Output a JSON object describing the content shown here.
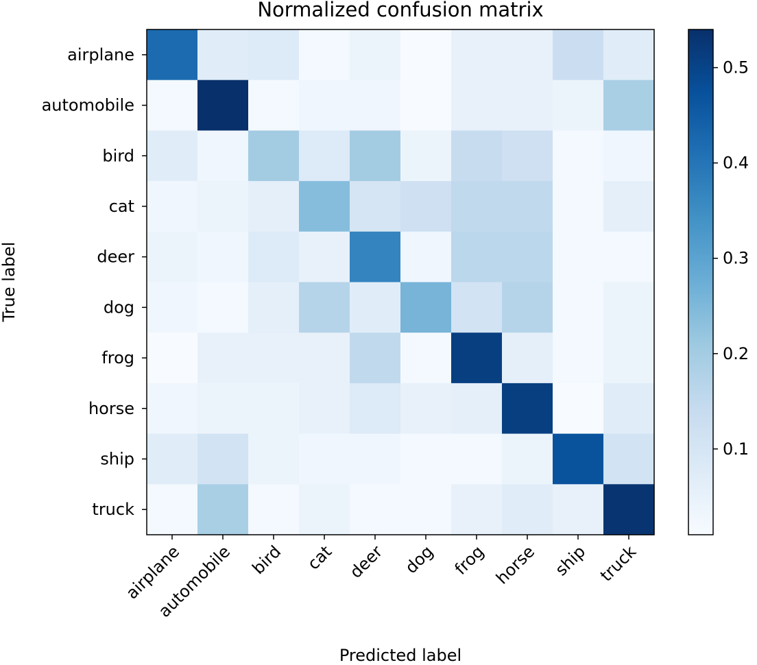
{
  "chart_data": {
    "type": "heatmap",
    "title": "Normalized confusion matrix",
    "xlabel": "Predicted label",
    "ylabel": "True label",
    "x_categories": [
      "airplane",
      "automobile",
      "bird",
      "cat",
      "deer",
      "dog",
      "frog",
      "horse",
      "ship",
      "truck"
    ],
    "y_categories": [
      "airplane",
      "automobile",
      "bird",
      "cat",
      "deer",
      "dog",
      "frog",
      "horse",
      "ship",
      "truck"
    ],
    "values": [
      [
        0.42,
        0.07,
        0.08,
        0.02,
        0.04,
        0.01,
        0.05,
        0.05,
        0.13,
        0.07
      ],
      [
        0.02,
        0.54,
        0.02,
        0.03,
        0.03,
        0.01,
        0.05,
        0.05,
        0.04,
        0.19
      ],
      [
        0.07,
        0.03,
        0.2,
        0.08,
        0.2,
        0.04,
        0.14,
        0.12,
        0.02,
        0.03
      ],
      [
        0.03,
        0.04,
        0.06,
        0.24,
        0.1,
        0.12,
        0.15,
        0.15,
        0.02,
        0.06
      ],
      [
        0.04,
        0.03,
        0.08,
        0.05,
        0.37,
        0.03,
        0.16,
        0.16,
        0.02,
        0.02
      ],
      [
        0.03,
        0.02,
        0.06,
        0.17,
        0.07,
        0.26,
        0.11,
        0.17,
        0.02,
        0.04
      ],
      [
        0.01,
        0.05,
        0.05,
        0.05,
        0.15,
        0.02,
        0.51,
        0.06,
        0.02,
        0.04
      ],
      [
        0.03,
        0.04,
        0.04,
        0.05,
        0.08,
        0.05,
        0.06,
        0.51,
        0.01,
        0.07
      ],
      [
        0.07,
        0.11,
        0.04,
        0.03,
        0.03,
        0.02,
        0.02,
        0.04,
        0.47,
        0.11
      ],
      [
        0.02,
        0.19,
        0.02,
        0.04,
        0.02,
        0.02,
        0.05,
        0.07,
        0.05,
        0.53
      ]
    ],
    "colorbar": {
      "colormap": "Blues",
      "min": 0.01,
      "max": 0.54,
      "ticks": [
        0.1,
        0.2,
        0.3,
        0.4,
        0.5
      ],
      "tick_labels": [
        "0.1",
        "0.2",
        "0.3",
        "0.4",
        "0.5"
      ]
    },
    "grid": false
  }
}
